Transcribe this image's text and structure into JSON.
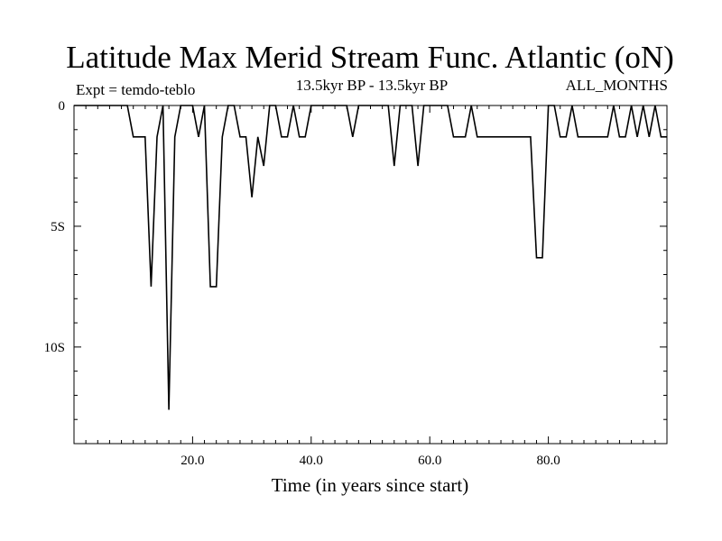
{
  "chart_data": {
    "type": "line",
    "title": "Latitude Max Merid Stream Func. Atlantic (oN)",
    "subtitle_left": "Expt = temdo-teblo",
    "subtitle_center": "13.5kyr BP - 13.5kyr BP",
    "subtitle_right": "ALL_MONTHS",
    "xlabel": "Time (in years since start)",
    "ylabel": "",
    "xlim": [
      0,
      100
    ],
    "ylim": [
      -14,
      0
    ],
    "x_ticks": [
      20,
      40,
      60,
      80
    ],
    "x_tick_labels": [
      "20.0",
      "40.0",
      "60.0",
      "80.0"
    ],
    "y_ticks": [
      0,
      -5,
      -10
    ],
    "y_tick_labels": [
      "0",
      "5S",
      "10S"
    ],
    "grid": false,
    "series": [
      {
        "x": [
          0,
          9,
          10,
          11,
          12,
          13,
          14,
          15,
          16,
          17,
          18,
          19,
          20,
          21,
          22,
          23,
          24,
          25,
          26,
          27,
          28,
          29,
          30,
          31,
          32,
          33,
          34,
          35,
          36,
          37,
          38,
          39,
          40,
          41,
          42,
          43,
          44,
          45,
          46,
          47,
          48,
          49,
          50,
          51,
          52,
          53,
          54,
          55,
          56,
          57,
          58,
          59,
          60,
          61,
          62,
          63,
          64,
          65,
          66,
          67,
          68,
          69,
          70,
          71,
          72,
          73,
          74,
          75,
          76,
          77,
          78,
          79,
          80,
          81,
          82,
          83,
          84,
          85,
          86,
          87,
          88,
          89,
          90,
          91,
          92,
          93,
          94,
          95,
          96,
          97,
          98,
          99,
          100
        ],
        "y": [
          0,
          0,
          -1.3,
          -1.3,
          -1.3,
          -7.5,
          -1.3,
          0,
          -12.6,
          -1.3,
          0,
          0,
          0,
          -1.3,
          0,
          -7.5,
          -7.5,
          -1.3,
          0,
          0,
          -1.3,
          -1.3,
          -3.8,
          -1.3,
          -2.5,
          0,
          0,
          -1.3,
          -1.3,
          0,
          -1.3,
          -1.3,
          0,
          0,
          0,
          0,
          0,
          0,
          0,
          -1.3,
          0,
          0,
          0,
          0,
          0,
          0,
          -2.5,
          0,
          0,
          0,
          -2.5,
          0,
          0,
          0,
          0,
          0,
          -1.3,
          -1.3,
          -1.3,
          0,
          -1.3,
          -1.3,
          -1.3,
          -1.3,
          -1.3,
          -1.3,
          -1.3,
          -1.3,
          -1.3,
          -1.3,
          -6.3,
          -6.3,
          0,
          0,
          -1.3,
          -1.3,
          0,
          -1.3,
          -1.3,
          -1.3,
          -1.3,
          -1.3,
          -1.3,
          0,
          -1.3,
          -1.3,
          0,
          -1.3,
          0,
          -1.3,
          0,
          -1.3,
          -1.3
        ]
      }
    ]
  }
}
